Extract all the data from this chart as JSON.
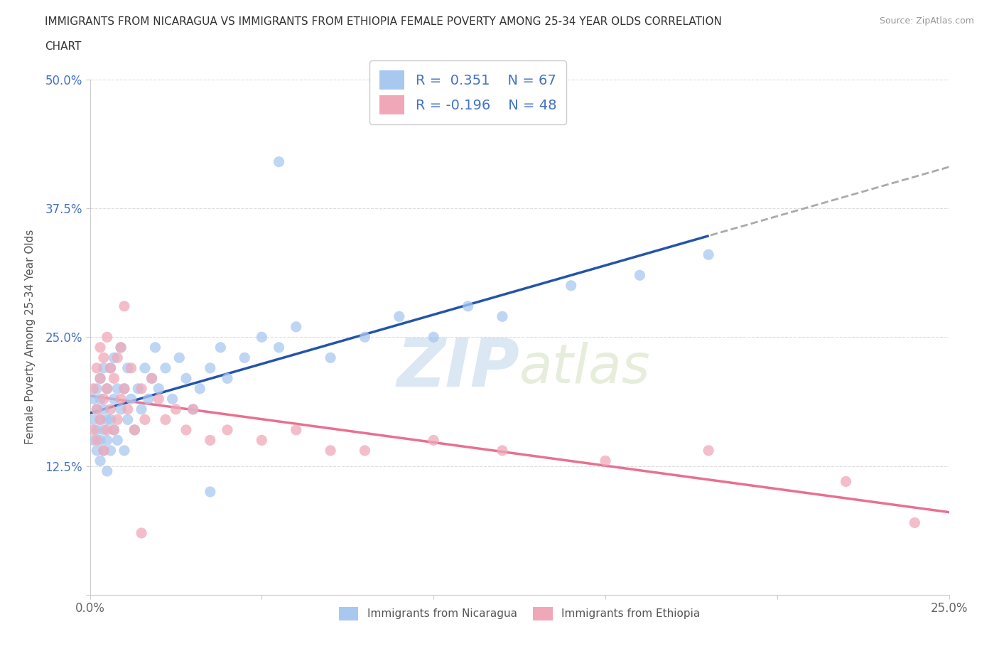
{
  "title_line1": "IMMIGRANTS FROM NICARAGUA VS IMMIGRANTS FROM ETHIOPIA FEMALE POVERTY AMONG 25-34 YEAR OLDS CORRELATION",
  "title_line2": "CHART",
  "source": "Source: ZipAtlas.com",
  "watermark_zip": "ZIP",
  "watermark_atlas": "atlas",
  "xlabel": "",
  "ylabel": "Female Poverty Among 25-34 Year Olds",
  "xlim": [
    0,
    0.25
  ],
  "ylim": [
    0,
    0.5
  ],
  "xticks": [
    0.0,
    0.05,
    0.1,
    0.15,
    0.2,
    0.25
  ],
  "yticks": [
    0.0,
    0.125,
    0.25,
    0.375,
    0.5
  ],
  "xticklabels": [
    "0.0%",
    "",
    "",
    "",
    "",
    "25.0%"
  ],
  "yticklabels": [
    "",
    "12.5%",
    "25.0%",
    "37.5%",
    "50.0%"
  ],
  "nicaragua_color": "#a8c8f0",
  "ethiopia_color": "#f0a8b8",
  "nicaragua_line_color": "#2255aa",
  "ethiopia_line_color": "#e87090",
  "nicaragua_R": 0.351,
  "nicaragua_N": 67,
  "ethiopia_R": -0.196,
  "ethiopia_N": 48,
  "nicaragua_legend": "Immigrants from Nicaragua",
  "ethiopia_legend": "Immigrants from Ethiopia",
  "background_color": "#ffffff",
  "grid_color": "#dddddd",
  "nicaragua_scatter_x": [
    0.001,
    0.001,
    0.001,
    0.002,
    0.002,
    0.002,
    0.002,
    0.003,
    0.003,
    0.003,
    0.003,
    0.003,
    0.004,
    0.004,
    0.004,
    0.004,
    0.005,
    0.005,
    0.005,
    0.005,
    0.006,
    0.006,
    0.006,
    0.007,
    0.007,
    0.007,
    0.008,
    0.008,
    0.009,
    0.009,
    0.01,
    0.01,
    0.011,
    0.011,
    0.012,
    0.013,
    0.014,
    0.015,
    0.016,
    0.017,
    0.018,
    0.019,
    0.02,
    0.022,
    0.024,
    0.026,
    0.028,
    0.03,
    0.032,
    0.035,
    0.038,
    0.04,
    0.045,
    0.05,
    0.055,
    0.06,
    0.07,
    0.08,
    0.09,
    0.1,
    0.11,
    0.12,
    0.14,
    0.16,
    0.18,
    0.055,
    0.035
  ],
  "nicaragua_scatter_y": [
    0.15,
    0.17,
    0.19,
    0.14,
    0.16,
    0.18,
    0.2,
    0.13,
    0.15,
    0.17,
    0.19,
    0.21,
    0.14,
    0.16,
    0.18,
    0.22,
    0.12,
    0.15,
    0.17,
    0.2,
    0.14,
    0.17,
    0.22,
    0.16,
    0.19,
    0.23,
    0.15,
    0.2,
    0.18,
    0.24,
    0.14,
    0.2,
    0.17,
    0.22,
    0.19,
    0.16,
    0.2,
    0.18,
    0.22,
    0.19,
    0.21,
    0.24,
    0.2,
    0.22,
    0.19,
    0.23,
    0.21,
    0.18,
    0.2,
    0.22,
    0.24,
    0.21,
    0.23,
    0.25,
    0.24,
    0.26,
    0.23,
    0.25,
    0.27,
    0.25,
    0.28,
    0.27,
    0.3,
    0.31,
    0.33,
    0.42,
    0.1
  ],
  "ethiopia_scatter_x": [
    0.001,
    0.001,
    0.002,
    0.002,
    0.002,
    0.003,
    0.003,
    0.003,
    0.004,
    0.004,
    0.004,
    0.005,
    0.005,
    0.005,
    0.006,
    0.006,
    0.007,
    0.007,
    0.008,
    0.008,
    0.009,
    0.009,
    0.01,
    0.011,
    0.012,
    0.013,
    0.015,
    0.016,
    0.018,
    0.02,
    0.022,
    0.025,
    0.028,
    0.03,
    0.035,
    0.04,
    0.05,
    0.06,
    0.07,
    0.08,
    0.1,
    0.12,
    0.15,
    0.18,
    0.22,
    0.24,
    0.01,
    0.015
  ],
  "ethiopia_scatter_y": [
    0.16,
    0.2,
    0.18,
    0.22,
    0.15,
    0.17,
    0.21,
    0.24,
    0.14,
    0.19,
    0.23,
    0.16,
    0.2,
    0.25,
    0.18,
    0.22,
    0.16,
    0.21,
    0.17,
    0.23,
    0.19,
    0.24,
    0.2,
    0.18,
    0.22,
    0.16,
    0.2,
    0.17,
    0.21,
    0.19,
    0.17,
    0.18,
    0.16,
    0.18,
    0.15,
    0.16,
    0.15,
    0.16,
    0.14,
    0.14,
    0.15,
    0.14,
    0.13,
    0.14,
    0.11,
    0.07,
    0.28,
    0.06
  ]
}
